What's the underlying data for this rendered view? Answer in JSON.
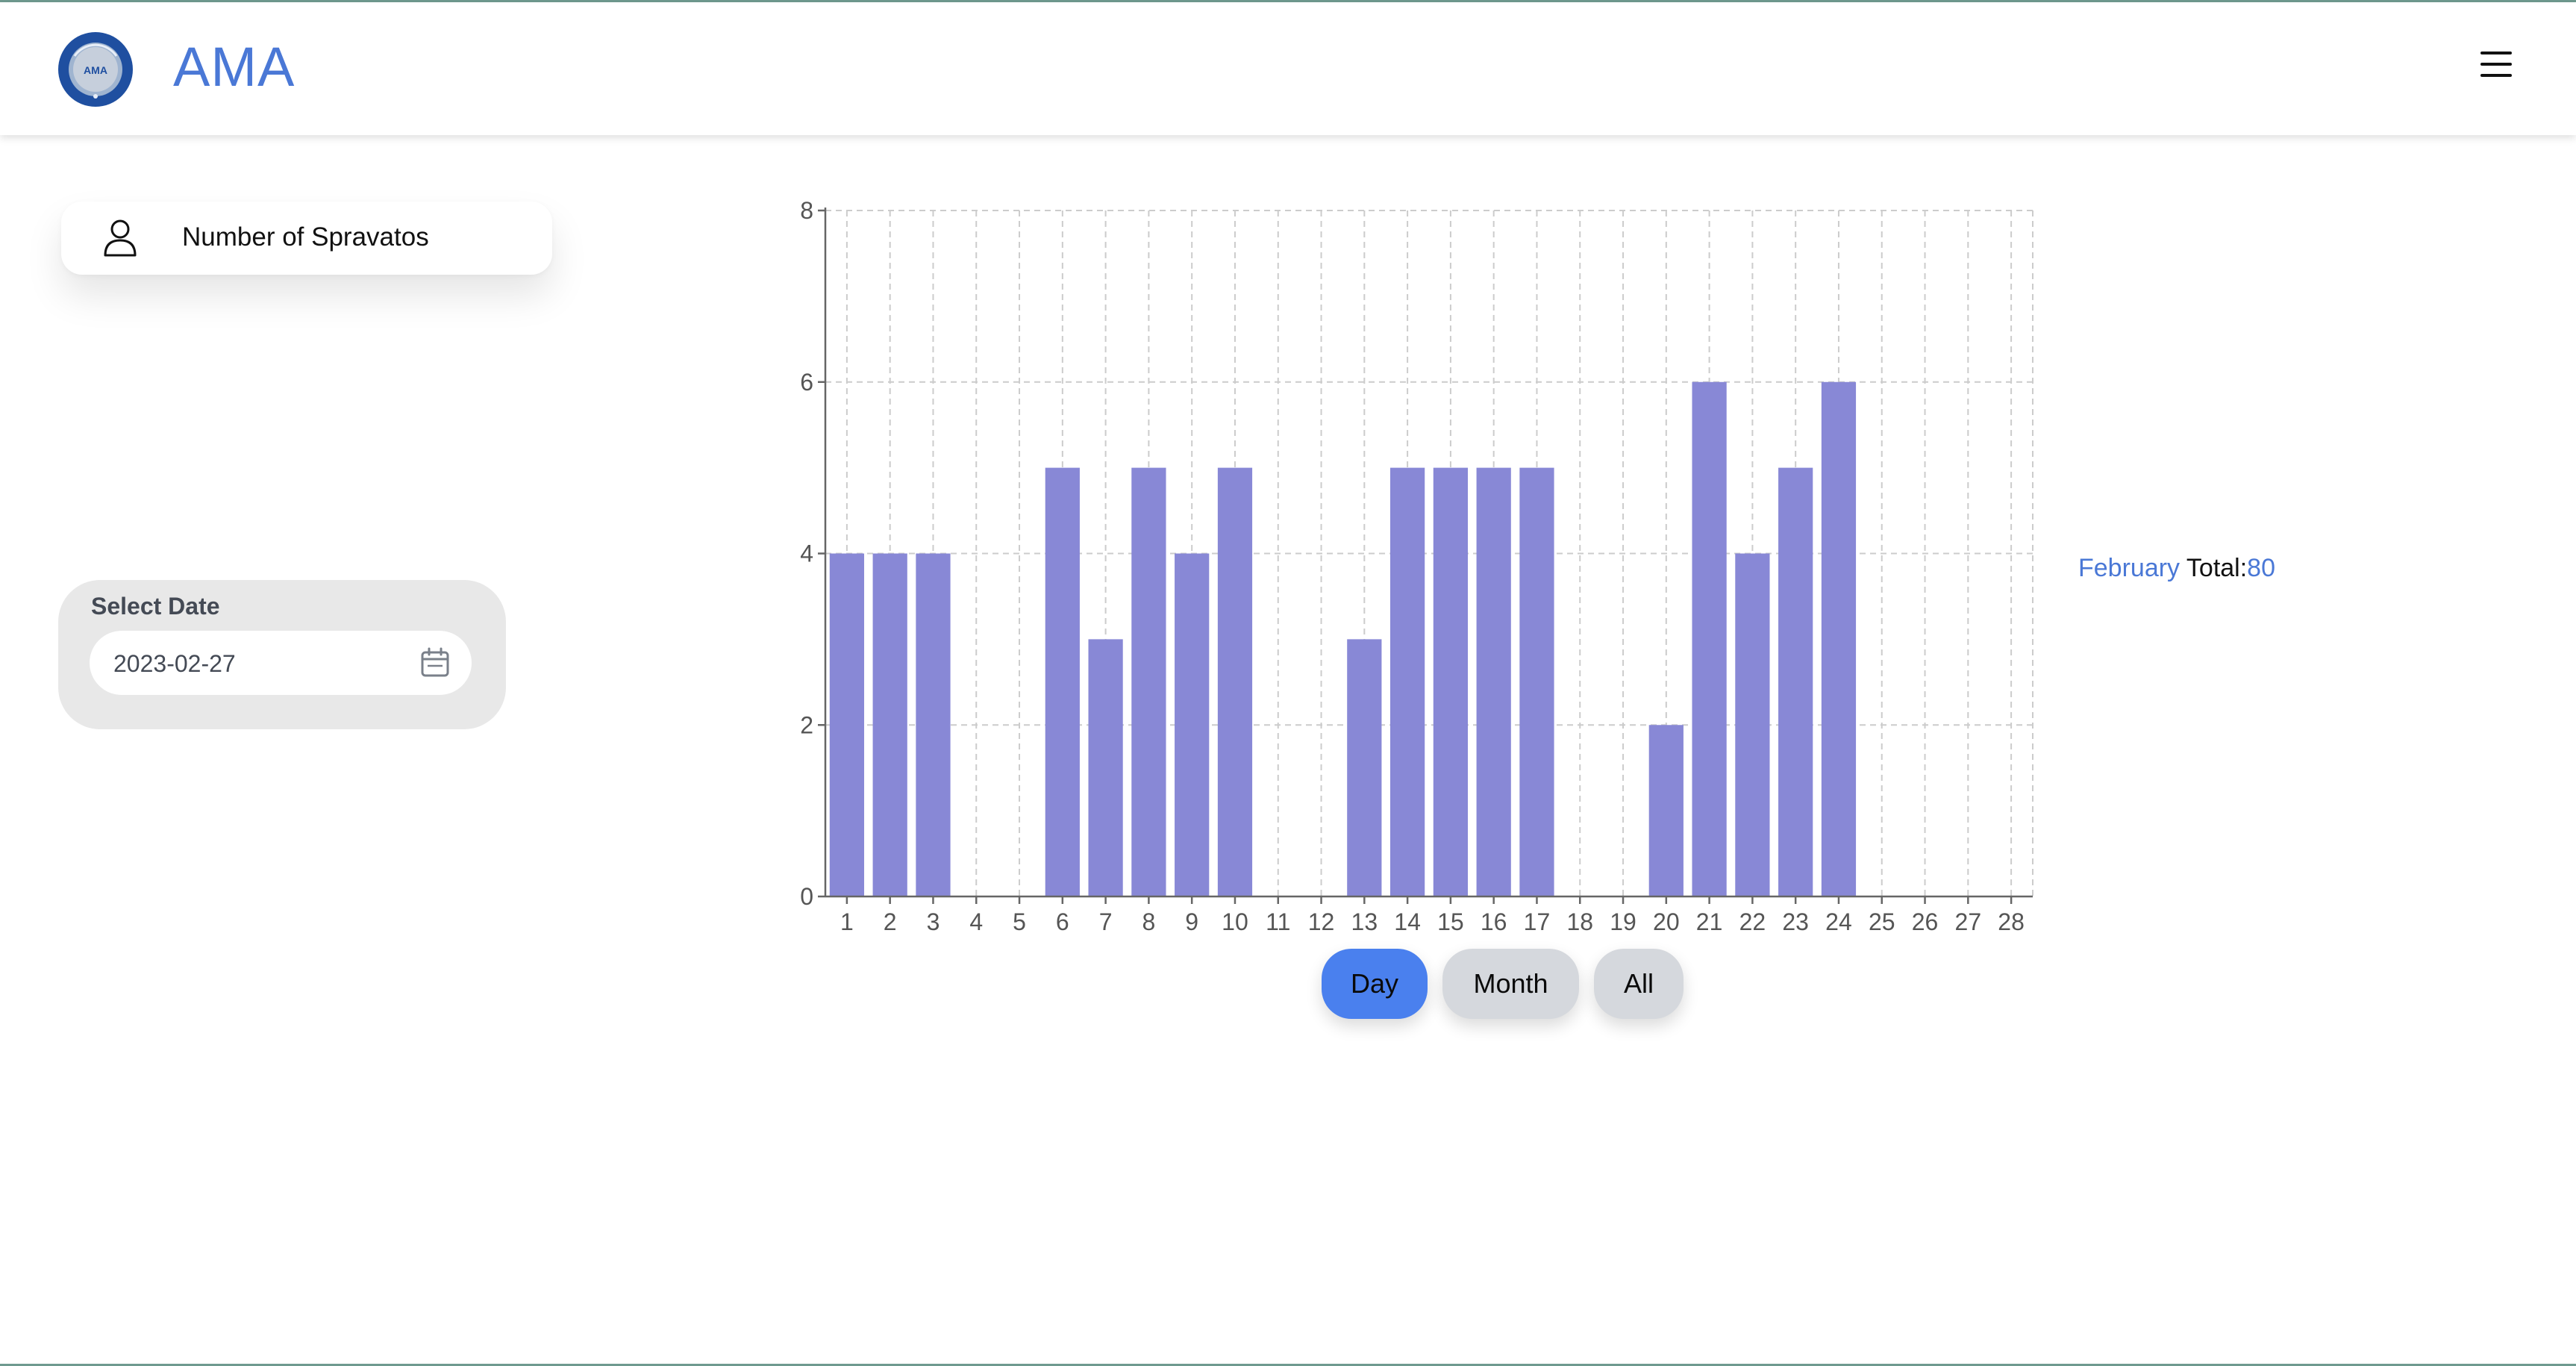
{
  "header": {
    "title": "AMA",
    "logo_icon": "ama-seal-logo",
    "menu_icon": "hamburger-menu-icon"
  },
  "stat_card": {
    "icon": "user-icon",
    "label": "Number of Spravatos"
  },
  "date_picker": {
    "label": "Select Date",
    "value": "2023-02-27",
    "icon": "calendar-icon"
  },
  "summary": {
    "month": "February",
    "total_label": "Total:",
    "total_value": "80"
  },
  "range_buttons": {
    "day": "Day",
    "month": "Month",
    "all": "All",
    "active": "day"
  },
  "colors": {
    "accent": "#4a78d6",
    "bar": "#8888d6",
    "active_button": "#4a80ee",
    "inactive_button": "#d5d8dd"
  },
  "chart_data": {
    "type": "bar",
    "categories": [
      "1",
      "2",
      "3",
      "4",
      "5",
      "6",
      "7",
      "8",
      "9",
      "10",
      "11",
      "12",
      "13",
      "14",
      "15",
      "16",
      "17",
      "18",
      "19",
      "20",
      "21",
      "22",
      "23",
      "24",
      "25",
      "26",
      "27",
      "28"
    ],
    "values": [
      4,
      4,
      4,
      0,
      0,
      5,
      3,
      5,
      4,
      5,
      0,
      0,
      3,
      5,
      5,
      5,
      5,
      0,
      0,
      2,
      6,
      4,
      5,
      6,
      0,
      0,
      0,
      0
    ],
    "ylim": [
      0,
      8
    ],
    "yticks": [
      0,
      2,
      4,
      6,
      8
    ],
    "grid": true
  }
}
